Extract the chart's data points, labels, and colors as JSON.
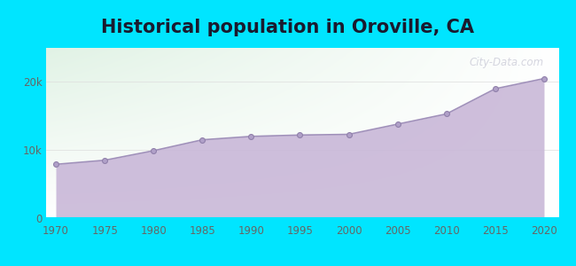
{
  "title": "Historical population in Oroville, CA",
  "title_fontsize": 15,
  "title_color": "#1a1a2e",
  "background_outer": "#00e5ff",
  "grad_top_left": "#d4edda",
  "grad_top_right": "#ffffff",
  "grad_bottom": "#ffffff",
  "years": [
    1970,
    1975,
    1980,
    1985,
    1990,
    1995,
    2000,
    2005,
    2010,
    2015,
    2020
  ],
  "population": [
    7900,
    8500,
    9900,
    11500,
    12000,
    12200,
    12300,
    13800,
    15300,
    19000,
    20500
  ],
  "fill_color": "#c9b8d8",
  "fill_alpha": 0.9,
  "line_color": "#a090ba",
  "line_width": 1.2,
  "dot_color": "#b0a0c8",
  "dot_size": 18,
  "dot_edge_color": "#9080aa",
  "dot_edge_width": 0.8,
  "ytick_labels": [
    "0",
    "10k",
    "20k"
  ],
  "ytick_values": [
    0,
    10000,
    20000
  ],
  "ylim": [
    0,
    25000
  ],
  "xlim": [
    1969,
    2021.5
  ],
  "grid_color": "#dddddd",
  "grid_linewidth": 0.5,
  "watermark_text": "City-Data.com",
  "watermark_color": "#bbbbcc",
  "watermark_alpha": 0.6,
  "spine_color": "#aaaaaa",
  "tick_color": "#666666",
  "tick_label_fontsize": 8.5
}
